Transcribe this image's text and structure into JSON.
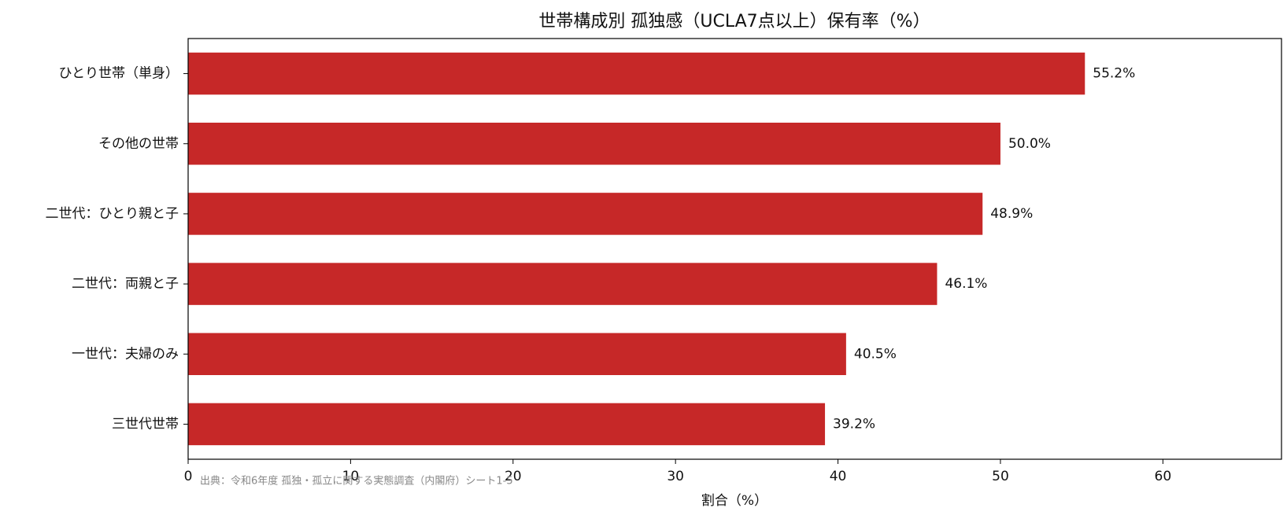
{
  "chart_data": {
    "type": "barh",
    "title": "世帯構成別 孤独感（UCLA7点以上）保有率（%）",
    "xlabel": "割合（%）",
    "note": "出典：令和6年度 孤独・孤立に関する実態調査（内閣府）シート1-5",
    "categories": [
      "ひとり世帯（単身）",
      "その他の世帯",
      "二世代：ひとり親と子",
      "二世代：両親と子",
      "一世代：夫婦のみ",
      "三世代世帯"
    ],
    "values": [
      55.2,
      50.0,
      48.9,
      46.1,
      40.5,
      39.2
    ],
    "value_labels": [
      "55.2%",
      "50.0%",
      "48.9%",
      "46.1%",
      "40.5%",
      "39.2%"
    ],
    "color": "#c62828",
    "xlim": [
      0,
      67.3
    ],
    "xticks": [
      0,
      10,
      20,
      30,
      40,
      50,
      60
    ],
    "grid": false
  }
}
